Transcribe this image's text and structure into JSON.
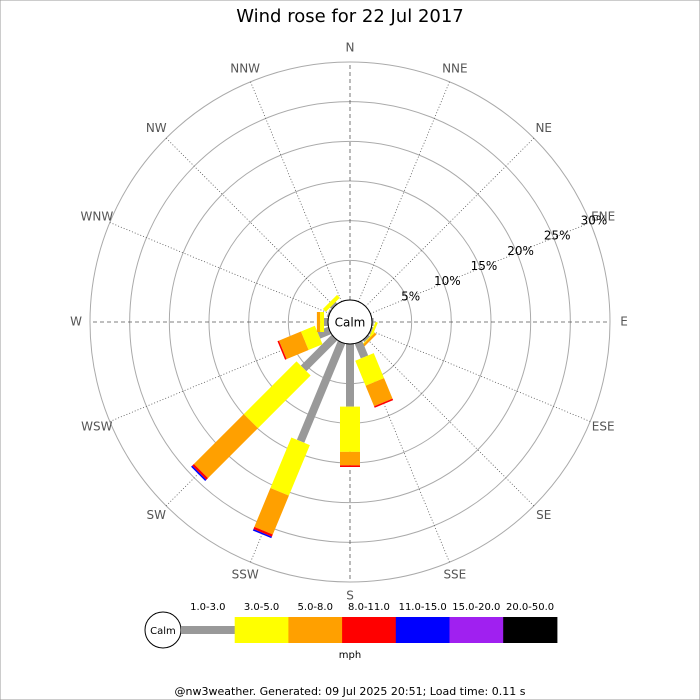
{
  "chart_data": {
    "type": "windrose",
    "title": "Wind rose for 22 Jul 2017",
    "directions": [
      "N",
      "NNE",
      "NE",
      "ENE",
      "E",
      "ESE",
      "SE",
      "SSE",
      "S",
      "SSW",
      "SW",
      "WSW",
      "W",
      "WNW",
      "NW",
      "NNW"
    ],
    "rlim": [
      0,
      30
    ],
    "rticks": [
      {
        "value": 5,
        "label": "5%"
      },
      {
        "value": 10,
        "label": "10%"
      },
      {
        "value": 15,
        "label": "15%"
      },
      {
        "value": 20,
        "label": "20%"
      },
      {
        "value": 25,
        "label": "25%"
      },
      {
        "value": 30,
        "label": "30%"
      }
    ],
    "calm_label": "Calm",
    "unit": "mph",
    "series": [
      {
        "name": "1.0-3.0",
        "color": "#999999",
        "values": [
          0,
          0,
          0,
          0,
          0.2,
          0.2,
          0.3,
          2.0,
          7.9,
          13.5,
          5.5,
          1.5,
          0.5,
          0.2,
          0.3,
          0
        ]
      },
      {
        "name": "3.0-5.0",
        "color": "#ffff00",
        "values": [
          0,
          0,
          0,
          0,
          0,
          0.3,
          0.1,
          3.4,
          5.7,
          6.9,
          9.4,
          1.9,
          0.5,
          0,
          0.5,
          0
        ]
      },
      {
        "name": "5.0-8.0",
        "color": "#ffa000",
        "values": [
          0,
          0,
          0,
          0,
          0,
          0,
          0.3,
          2.8,
          1.7,
          5.3,
          8.9,
          3.0,
          0.4,
          0,
          0,
          0
        ]
      },
      {
        "name": "8.0-11.0",
        "color": "#ff0000",
        "values": [
          0,
          0,
          0,
          0,
          0,
          0,
          0,
          0.2,
          0.2,
          0.3,
          0.3,
          0.2,
          0,
          0,
          0,
          0
        ]
      },
      {
        "name": "11.0-15.0",
        "color": "#0000ff",
        "values": [
          0,
          0,
          0,
          0,
          0,
          0,
          0,
          0,
          0,
          0.2,
          0.2,
          0,
          0,
          0,
          0,
          0
        ]
      },
      {
        "name": "15.0-20.0",
        "color": "#a020f0",
        "values": [
          0,
          0,
          0,
          0,
          0,
          0,
          0,
          0,
          0,
          0,
          0,
          0,
          0,
          0,
          0,
          0
        ]
      },
      {
        "name": "20.0-50.0",
        "color": "#000000",
        "values": [
          0,
          0,
          0,
          0,
          0,
          0,
          0,
          0,
          0,
          0,
          0,
          0,
          0,
          0,
          0,
          0
        ]
      }
    ],
    "footer": "@nw3weather. Generated: 09 Jul 2025 20:51; Load time: 0.11 s"
  }
}
